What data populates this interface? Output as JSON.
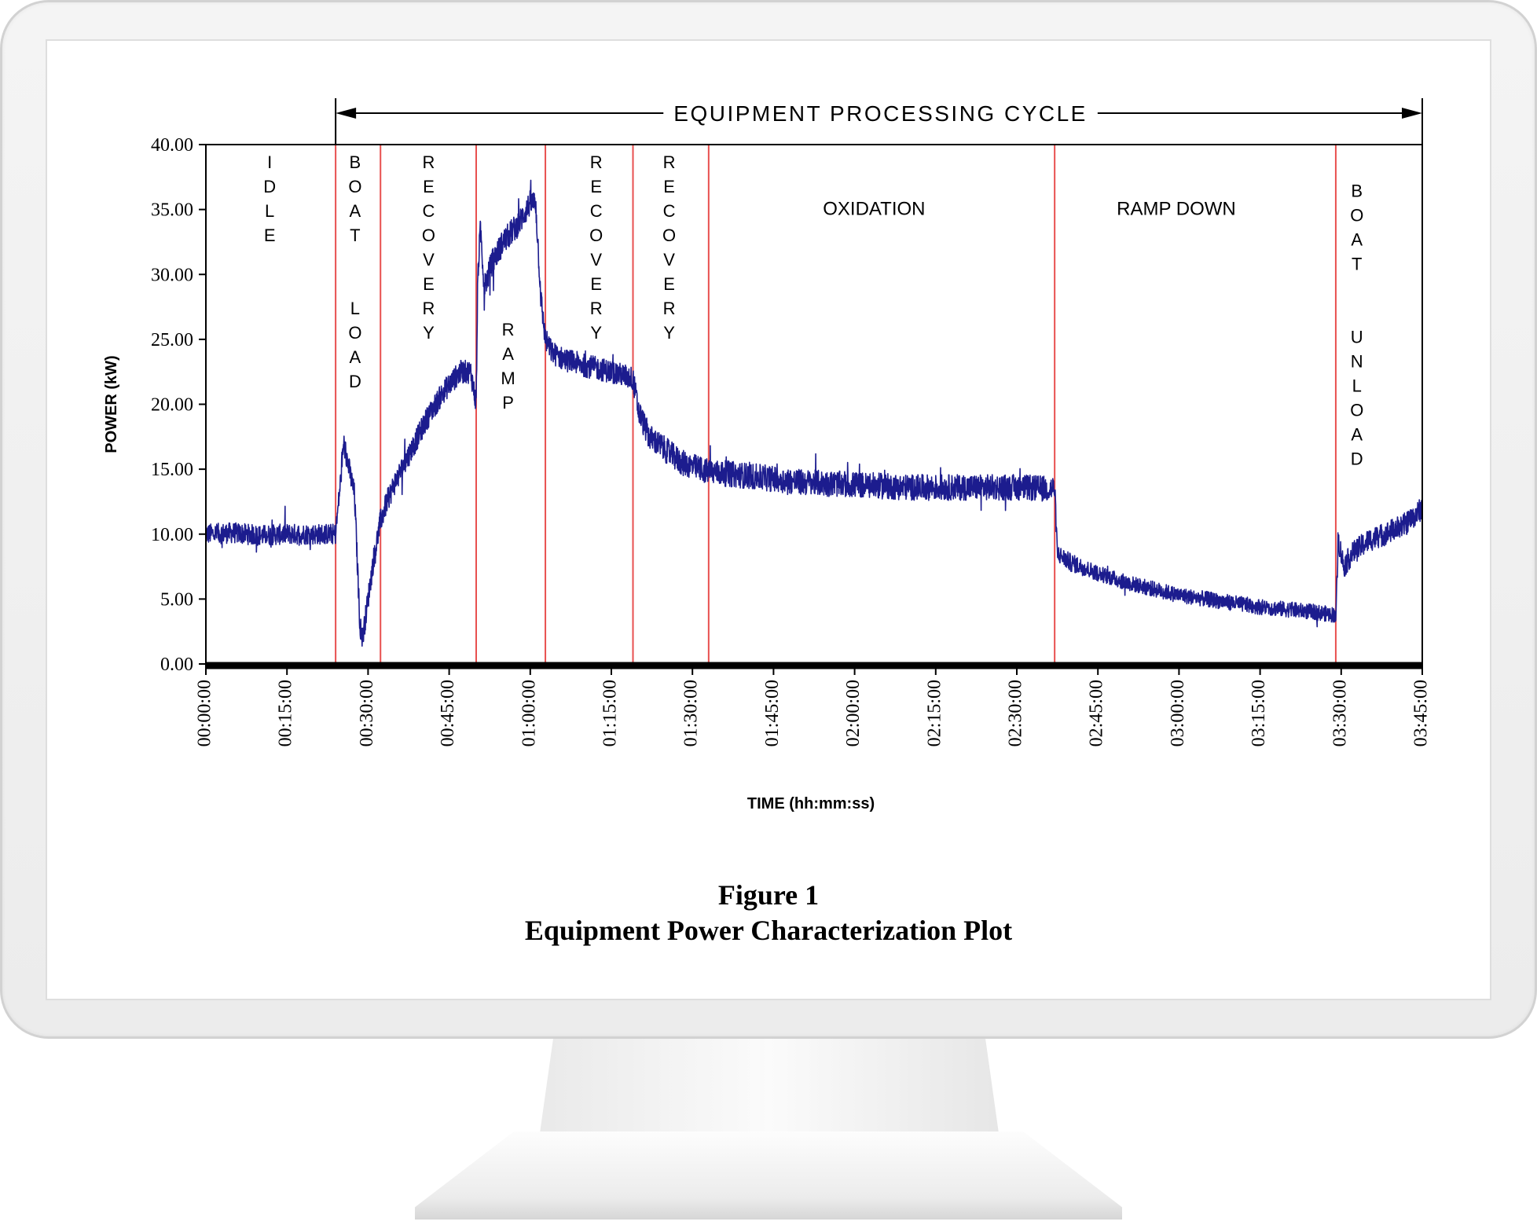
{
  "chart_data": {
    "type": "line",
    "title": "EQUIPMENT PROCESSING CYCLE",
    "xlabel": "TIME (hh:mm:ss)",
    "ylabel": "POWER (kW)",
    "x_unit": "minutes",
    "xlim": [
      0,
      225
    ],
    "ylim": [
      0,
      40
    ],
    "y_ticks": [
      "0.00",
      "5.00",
      "10.00",
      "15.00",
      "20.00",
      "25.00",
      "30.00",
      "35.00",
      "40.00"
    ],
    "x_ticks": [
      "00:00:00",
      "00:15:00",
      "00:30:00",
      "00:45:00",
      "01:00:00",
      "01:15:00",
      "01:30:00",
      "01:45:00",
      "02:00:00",
      "02:15:00",
      "02:30:00",
      "02:45:00",
      "03:00:00",
      "03:15:00",
      "03:30:00",
      "03:45:00"
    ],
    "grid": false,
    "series_color": "#1c1c8e",
    "phase_line_color": "#e8504f",
    "cycle_span_minutes": [
      24,
      225
    ],
    "phase_boundaries_minutes": [
      24,
      32.3,
      50,
      62.8,
      79,
      93,
      157,
      209
    ],
    "phases": [
      {
        "label": "IDLE",
        "vertical": true,
        "center_minutes": 11.8,
        "top_value": 39.4
      },
      {
        "label": "BOAT  LOAD",
        "vertical": true,
        "center_minutes": 27.6,
        "top_value": 39.4
      },
      {
        "label": "RECOVERY",
        "vertical": true,
        "center_minutes": 41.2,
        "top_value": 39.4
      },
      {
        "label": "RAMP",
        "vertical": true,
        "center_minutes": 55.9,
        "top_value": 26.5
      },
      {
        "label": "RECOVERY",
        "vertical": true,
        "center_minutes": 72.2,
        "top_value": 39.4
      },
      {
        "label": "RECOVERY",
        "vertical": true,
        "center_minutes": 85.7,
        "top_value": 39.4
      },
      {
        "label": "OXIDATION",
        "vertical": false,
        "center_minutes": 123.6,
        "top_value": 35.8
      },
      {
        "label": "RAMP DOWN",
        "vertical": false,
        "center_minutes": 179.5,
        "top_value": 35.8
      },
      {
        "label": "BOAT  UNLOAD",
        "vertical": true,
        "center_minutes": 212.9,
        "top_value": 37.2
      }
    ],
    "series": [
      {
        "x": [
          0,
          5,
          10,
          15,
          20,
          24,
          25,
          25.5,
          26.5,
          27.5,
          28.5,
          29,
          30,
          31,
          32.3,
          33.5,
          35,
          38,
          41,
          44,
          47,
          49,
          50,
          50.3,
          50.8,
          51.5,
          53,
          55,
          58,
          60,
          61,
          62,
          62.8,
          64,
          66,
          70,
          75,
          79,
          80,
          82,
          85,
          88,
          93,
          100,
          110,
          120,
          130,
          140,
          150,
          155,
          157,
          157.5,
          160,
          165,
          170,
          175,
          180,
          185,
          190,
          195,
          200,
          205,
          208.5,
          209,
          209.5,
          210.5,
          212,
          215,
          218,
          222,
          225
        ],
        "values": [
          10.0,
          10.1,
          9.9,
          10.0,
          10.0,
          10.0,
          14.5,
          17.0,
          15.0,
          13.0,
          3.0,
          2.0,
          5.0,
          8.0,
          11.0,
          12.5,
          14.0,
          16.5,
          19.0,
          21.0,
          22.5,
          22.5,
          20.0,
          30.0,
          33.5,
          29.0,
          31.0,
          32.5,
          34.0,
          35.5,
          35.5,
          28.0,
          25.0,
          24.0,
          23.5,
          23.0,
          22.5,
          22.0,
          19.5,
          17.5,
          16.5,
          15.5,
          14.8,
          14.5,
          14.0,
          13.8,
          13.6,
          13.6,
          13.6,
          13.5,
          13.5,
          8.5,
          7.8,
          7.0,
          6.3,
          5.8,
          5.3,
          5.0,
          4.7,
          4.4,
          4.2,
          4.0,
          3.8,
          3.8,
          9.5,
          7.5,
          8.5,
          9.5,
          10.0,
          10.8,
          12.0
        ],
        "noise": [
          0.8,
          0.8,
          0.8,
          0.8,
          0.8,
          0.8,
          0.9,
          0.9,
          0.9,
          0.9,
          0.9,
          0.9,
          0.9,
          0.9,
          0.9,
          0.9,
          0.9,
          0.9,
          0.9,
          0.9,
          0.9,
          0.9,
          0.9,
          1.0,
          1.0,
          1.0,
          1.0,
          1.0,
          1.0,
          1.0,
          1.0,
          1.0,
          0.9,
          0.9,
          0.9,
          0.9,
          0.9,
          0.9,
          1.0,
          1.0,
          1.0,
          1.0,
          1.0,
          1.0,
          1.0,
          1.0,
          1.0,
          1.0,
          1.0,
          1.0,
          1.0,
          0.7,
          0.7,
          0.6,
          0.6,
          0.6,
          0.6,
          0.6,
          0.6,
          0.6,
          0.6,
          0.6,
          0.6,
          0.6,
          0.9,
          0.9,
          0.9,
          0.9,
          0.9,
          0.9,
          0.9
        ]
      }
    ]
  },
  "caption": {
    "line1": "Figure 1",
    "line2": "Equipment Power Characterization Plot"
  }
}
